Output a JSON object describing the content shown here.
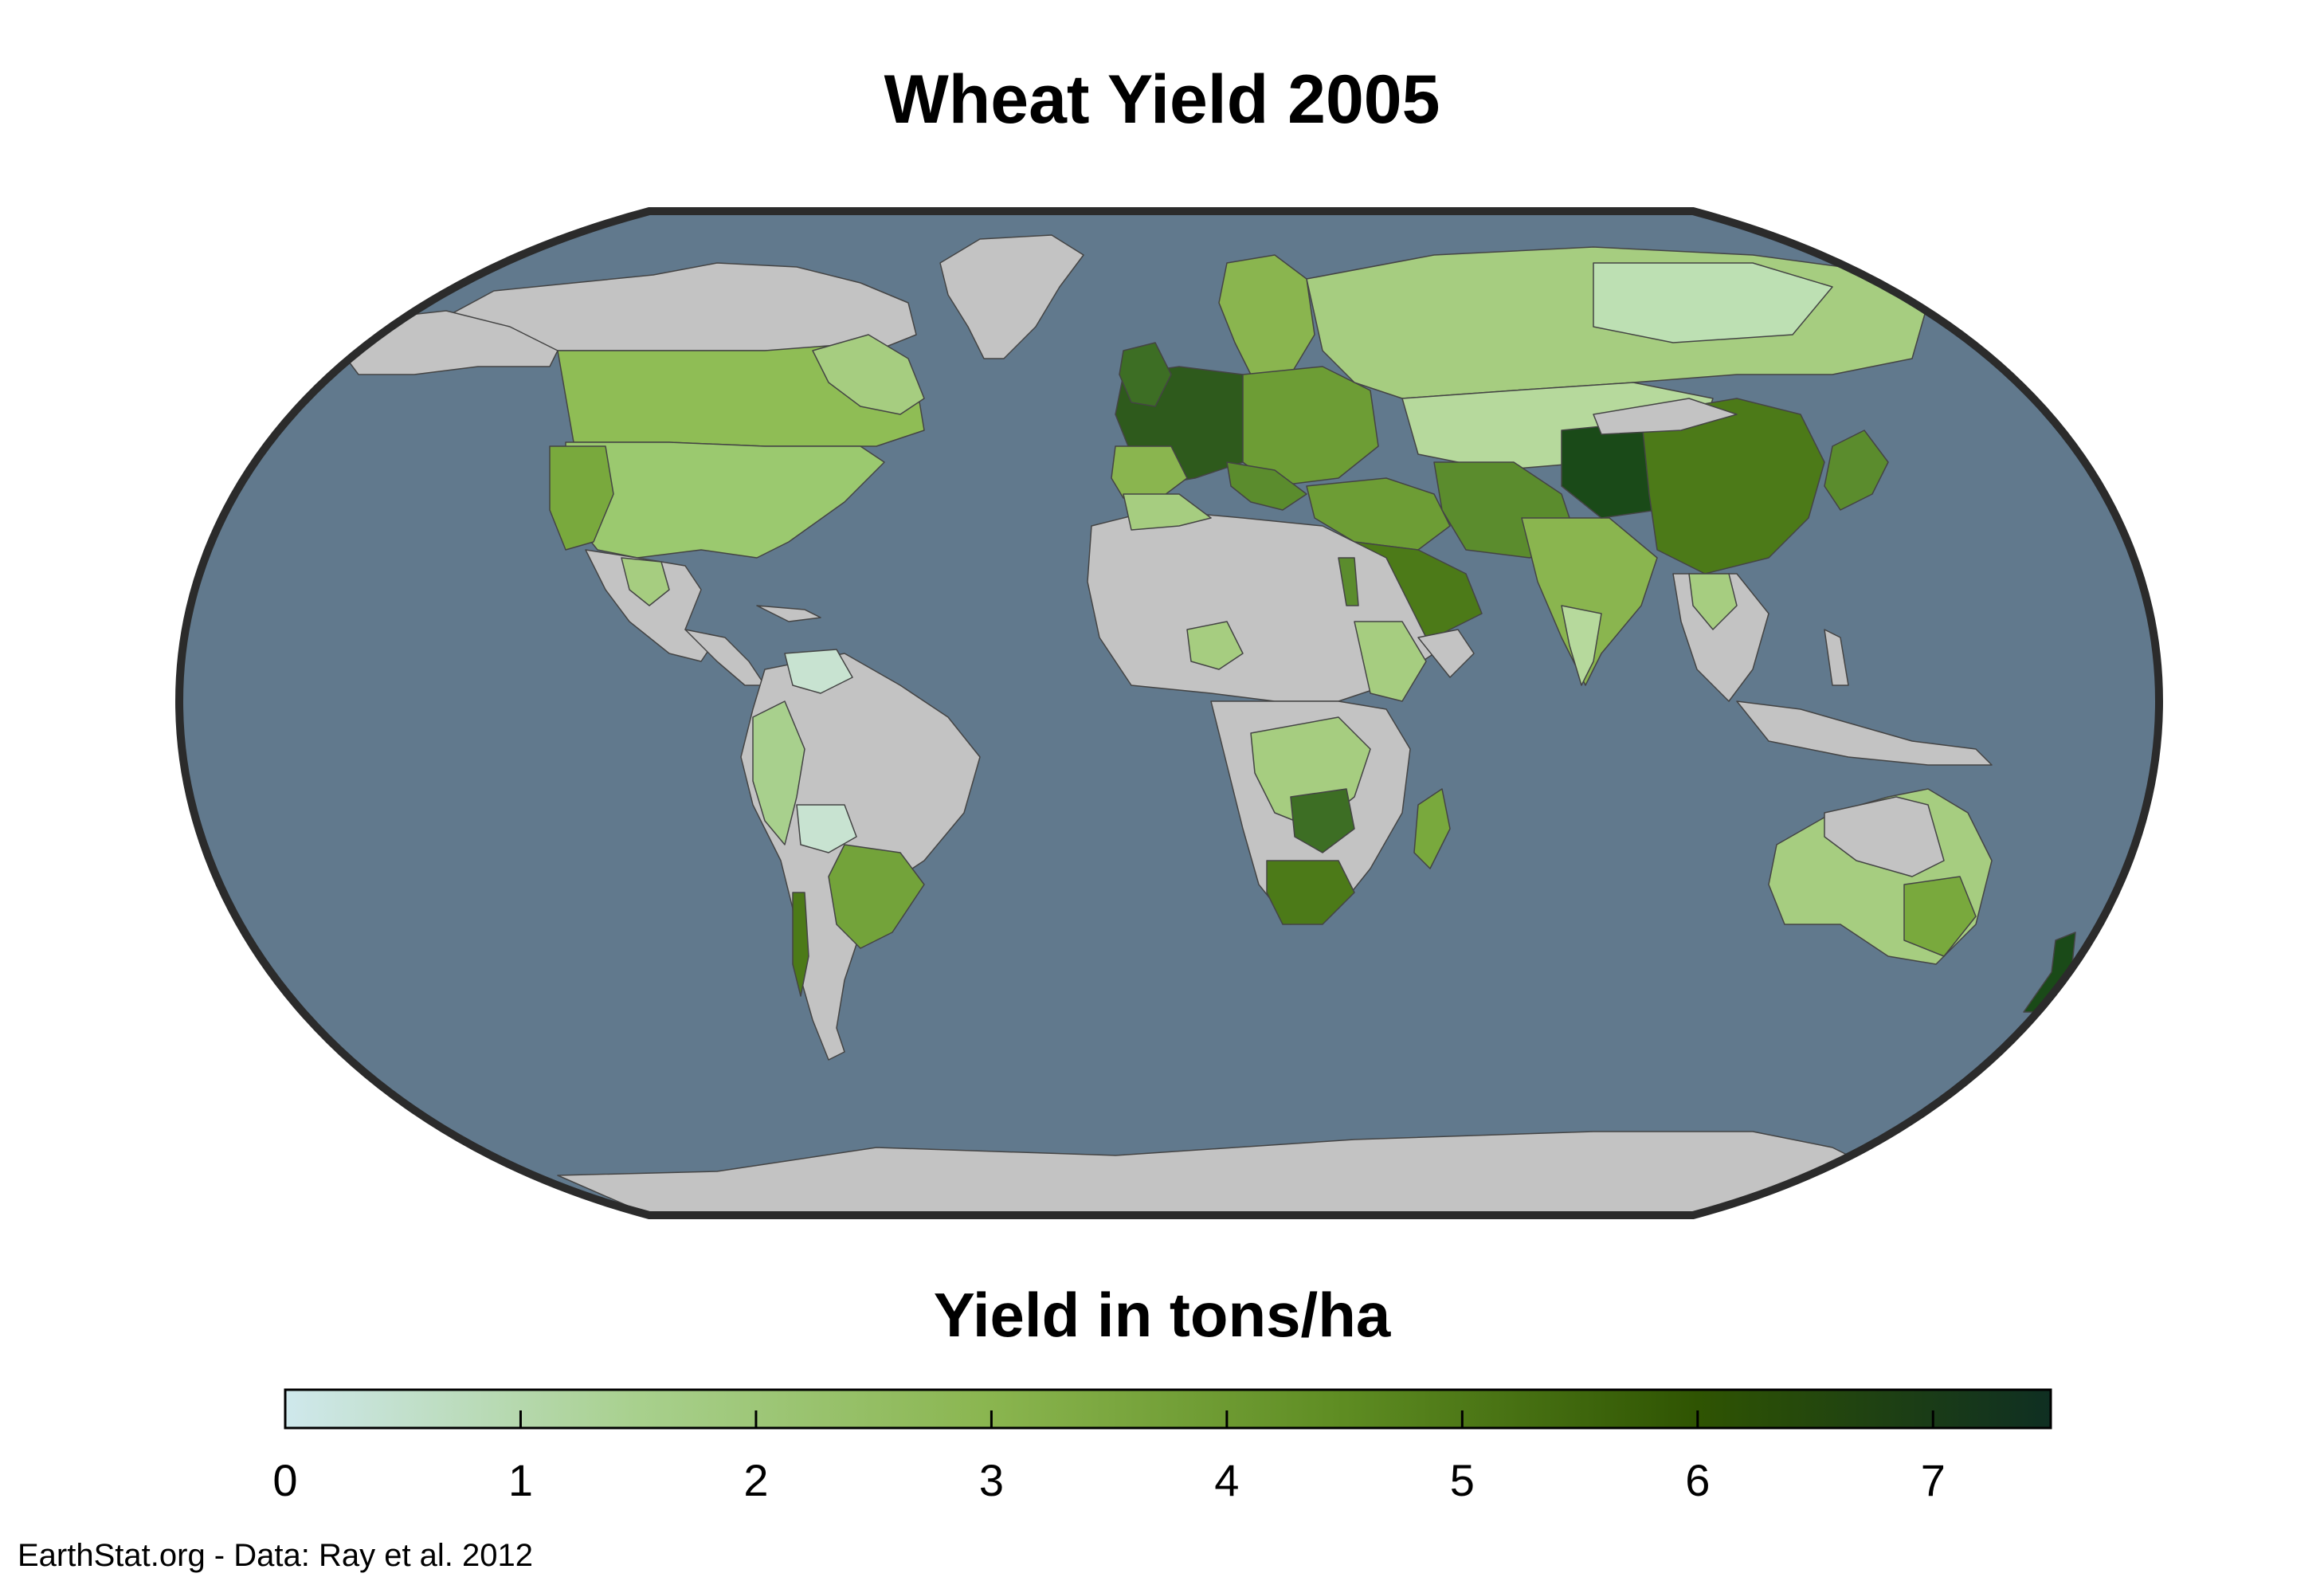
{
  "title": "Wheat Yield 2005",
  "legend": {
    "title": "Yield in tons/ha",
    "min": 0,
    "max": 7.5,
    "ticks": [
      {
        "value": 0,
        "label": "0"
      },
      {
        "value": 1,
        "label": "1"
      },
      {
        "value": 2,
        "label": "2"
      },
      {
        "value": 3,
        "label": "3"
      },
      {
        "value": 4,
        "label": "4"
      },
      {
        "value": 5,
        "label": "5"
      },
      {
        "value": 6,
        "label": "6"
      },
      {
        "value": 7,
        "label": "7"
      }
    ],
    "colors": [
      "#cfe8ec",
      "#a8d08d",
      "#8ab54f",
      "#5e8c22",
      "#2f5402",
      "#0f2f22"
    ]
  },
  "map": {
    "projection": "Robinson",
    "ocean_color": "#61798d",
    "no_data_color": "#c3c3c3",
    "frame_color": "#2b2b2b"
  },
  "credit": "EarthStat.org - Data: Ray et al. 2012"
}
